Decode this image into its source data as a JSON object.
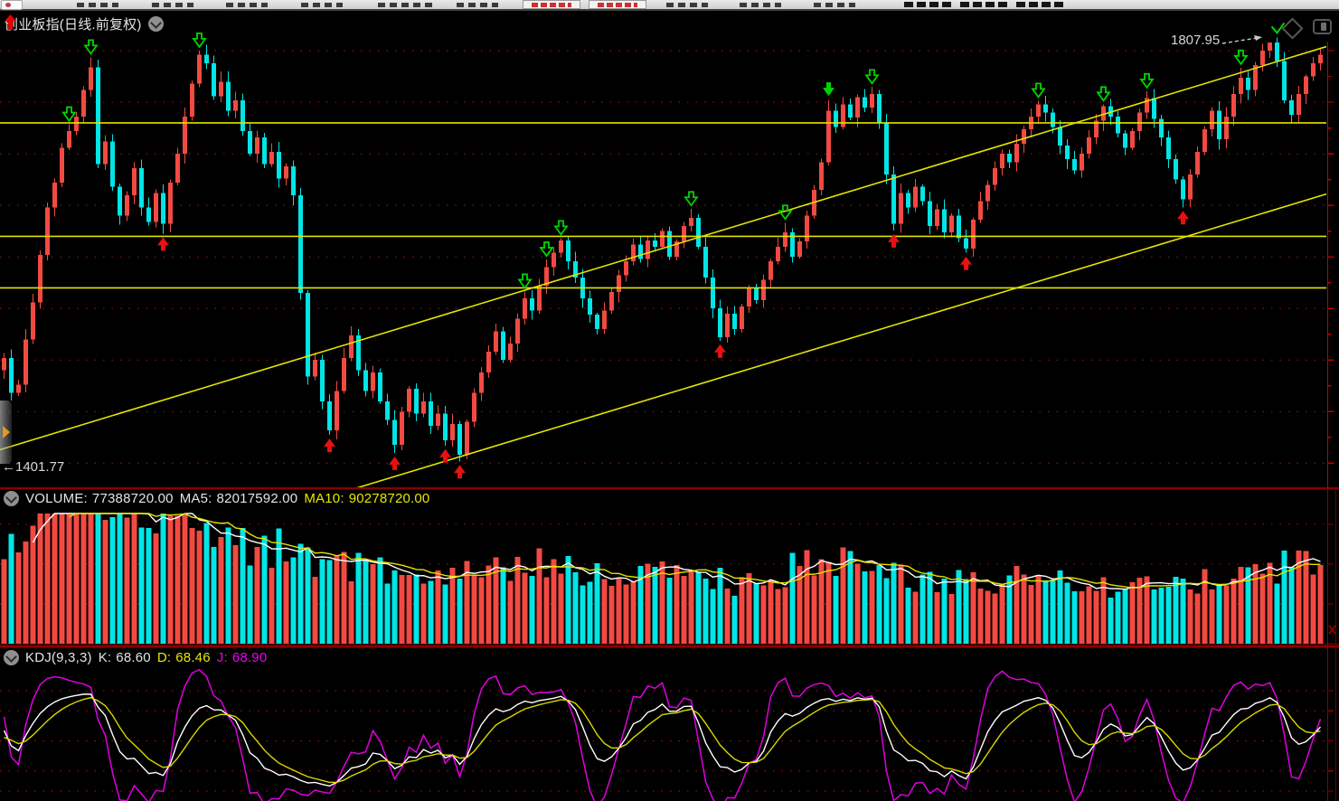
{
  "main_panel": {
    "title": "创业板指(日线.前复权)",
    "trend_icon": "red-up-arrow",
    "collapse_icon": "circle-chevron-down",
    "high_annotation": "1807.95",
    "low_annotation": "←1401.77"
  },
  "volume_panel": {
    "collapse_icon": "circle-chevron-down",
    "fields": [
      {
        "label": "VOLUME:",
        "value": "77388720.00",
        "color": "#e4e4e4"
      },
      {
        "label": "MA5:",
        "value": "82017592.00",
        "color": "#e4e4e4"
      },
      {
        "label": "MA10:",
        "value": "90278720.00",
        "color": "#e8e800"
      }
    ]
  },
  "kdj_panel": {
    "collapse_icon": "circle-chevron-down",
    "name": "KDJ(9,3,3)",
    "fields": [
      {
        "label": "K:",
        "value": "68.60",
        "color": "#e4e4e4"
      },
      {
        "label": "D:",
        "value": "68.46",
        "color": "#e8e800"
      },
      {
        "label": "J:",
        "value": "68.90",
        "color": "#ee00ee"
      }
    ]
  },
  "colors": {
    "up": "#f24a42",
    "down": "#00e6e6",
    "ma5": "#ffffff",
    "ma10": "#e3e300",
    "k": "#ffffff",
    "d": "#d8d800",
    "j": "#e000e0",
    "grid": "#a81414",
    "trendline": "#e3e300",
    "separator": "#8b0000",
    "axis": "#c00000",
    "marker_green": "#00d400",
    "marker_red": "#e81010"
  },
  "chart_data": {
    "type": "candlestick",
    "symbol": "创业板指",
    "period": "日线",
    "adjust": "前复权",
    "price_high_label": 1807.95,
    "price_low_label": 1401.77,
    "grid_prices": [
      1800,
      1750,
      1700,
      1650,
      1600,
      1550,
      1500,
      1450,
      1400
    ],
    "closes": [
      1502,
      1468,
      1476,
      1520,
      1556,
      1602,
      1648,
      1672,
      1706,
      1722,
      1736,
      1762,
      1784,
      1690,
      1712,
      1668,
      1640,
      1660,
      1686,
      1648,
      1634,
      1662,
      1632,
      1672,
      1700,
      1736,
      1768,
      1796,
      1788,
      1756,
      1770,
      1742,
      1752,
      1722,
      1700,
      1716,
      1690,
      1702,
      1676,
      1688,
      1660,
      1565,
      1484,
      1500,
      1460,
      1432,
      1470,
      1502,
      1524,
      1490,
      1470,
      1488,
      1460,
      1442,
      1418,
      1450,
      1472,
      1448,
      1460,
      1436,
      1448,
      1422,
      1438,
      1408,
      1440,
      1468,
      1488,
      1508,
      1528,
      1500,
      1516,
      1540,
      1560,
      1548,
      1572,
      1590,
      1604,
      1616,
      1596,
      1580,
      1560,
      1544,
      1530,
      1548,
      1566,
      1582,
      1596,
      1612,
      1598,
      1616,
      1610,
      1625,
      1600,
      1615,
      1630,
      1638,
      1610,
      1580,
      1550,
      1522,
      1545,
      1530,
      1552,
      1570,
      1558,
      1578,
      1596,
      1610,
      1624,
      1600,
      1615,
      1640,
      1665,
      1692,
      1742,
      1726,
      1748,
      1735,
      1755,
      1745,
      1758,
      1730,
      1680,
      1632,
      1662,
      1648,
      1668,
      1654,
      1630,
      1646,
      1624,
      1640,
      1618,
      1608,
      1636,
      1654,
      1670,
      1686,
      1700,
      1692,
      1710,
      1724,
      1736,
      1748,
      1740,
      1726,
      1708,
      1695,
      1684,
      1700,
      1716,
      1732,
      1746,
      1736,
      1720,
      1706,
      1722,
      1740,
      1754,
      1734,
      1716,
      1695,
      1675,
      1656,
      1680,
      1702,
      1724,
      1742,
      1714,
      1736,
      1758,
      1774,
      1762,
      1786,
      1800,
      1808,
      1790,
      1752,
      1738,
      1758,
      1775,
      1788,
      1796
    ],
    "volume": {
      "last": "77388720.00",
      "ma5": "82017592.00",
      "ma10": "90278720.00",
      "grid_values_millions": [
        50,
        100,
        150
      ],
      "base_anchors_millions": [
        [
          0,
          100
        ],
        [
          4,
          130
        ],
        [
          7,
          150
        ],
        [
          10,
          165
        ],
        [
          13,
          150
        ],
        [
          18,
          120
        ],
        [
          27,
          115
        ],
        [
          34,
          95
        ],
        [
          42,
          85
        ],
        [
          50,
          75
        ],
        [
          60,
          70
        ],
        [
          70,
          78
        ],
        [
          74,
          88
        ],
        [
          80,
          70
        ],
        [
          88,
          80
        ],
        [
          95,
          68
        ],
        [
          103,
          62
        ],
        [
          110,
          75
        ],
        [
          116,
          85
        ],
        [
          122,
          70
        ],
        [
          130,
          62
        ],
        [
          140,
          66
        ],
        [
          148,
          60
        ],
        [
          155,
          63
        ],
        [
          160,
          58
        ],
        [
          165,
          60
        ],
        [
          170,
          64
        ],
        [
          174,
          72
        ],
        [
          178,
          85
        ],
        [
          182,
          77
        ]
      ]
    },
    "kdj": {
      "params": [
        9,
        3,
        3
      ],
      "k": 68.6,
      "d": 68.46,
      "j": 68.9,
      "grid_values": [
        100,
        80,
        50,
        20,
        0
      ]
    },
    "trendlines": {
      "horizontal_prices": [
        1730,
        1620,
        1570
      ],
      "channel": [
        {
          "price_at_x0": 1413,
          "price_at_right": 1804
        },
        {
          "price_at_x0": 1271,
          "price_at_right": 1661
        }
      ]
    },
    "markers": {
      "hollow_down_green": [
        9,
        12,
        27,
        72,
        75,
        77,
        95,
        108,
        120,
        143,
        152,
        158,
        171
      ],
      "solid_down_green": [
        114
      ],
      "solid_up_red": [
        22,
        45,
        54,
        61,
        63,
        99,
        123,
        133,
        163
      ],
      "check_green": [
        176
      ]
    }
  }
}
